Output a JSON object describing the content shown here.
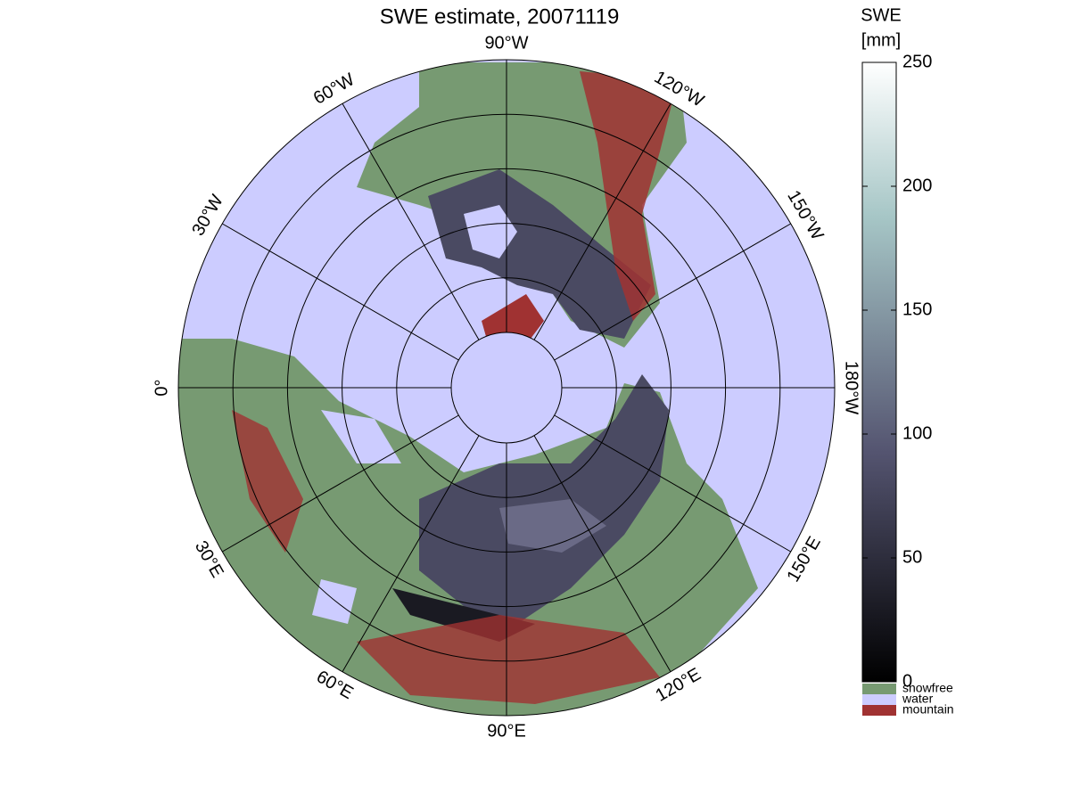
{
  "title": "SWE estimate, 20071119",
  "map": {
    "longitude_labels": [
      "90°W",
      "120°W",
      "150°W",
      "180°W",
      "150°E",
      "120°E",
      "90°E",
      "60°E",
      "30°E",
      "0°",
      "30°W",
      "60°W"
    ]
  },
  "colorbar": {
    "label": [
      "SWE",
      "[mm]"
    ],
    "lim": [
      0,
      250
    ],
    "ticks": [
      0,
      50,
      100,
      150,
      200,
      250
    ],
    "categories": [
      {
        "name": "snowfree",
        "color": "#779a72"
      },
      {
        "name": "water",
        "color": "#ccccff"
      },
      {
        "name": "mountain",
        "color": "#a03232"
      }
    ]
  }
}
